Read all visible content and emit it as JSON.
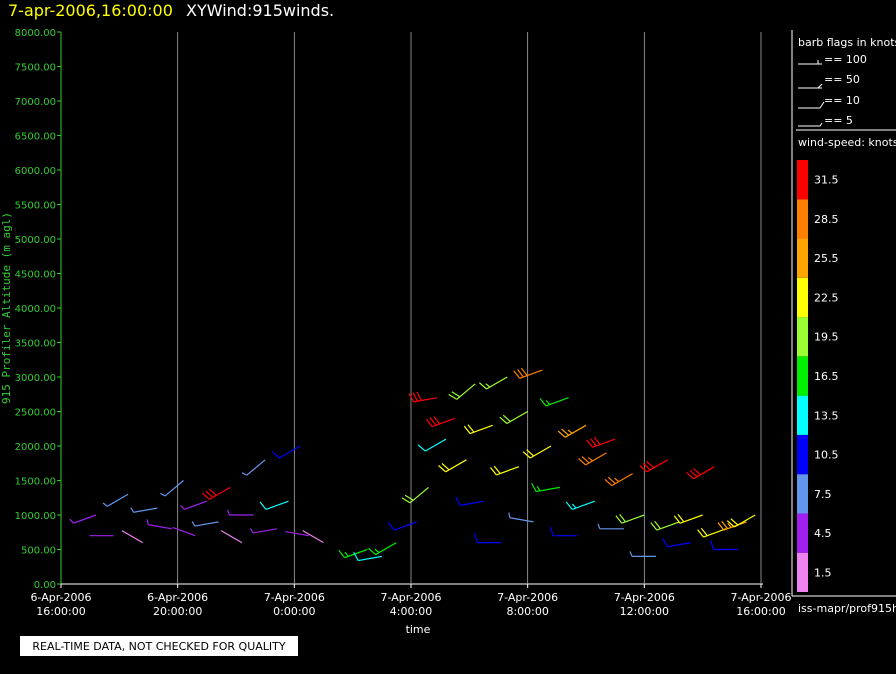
{
  "chart_data": {
    "type": "windbarb",
    "timestamp": "7-apr-2006,16:00:00",
    "title": "XYWind:915winds.",
    "ylabel": "915 Profiler Altitude (m agl)",
    "xlabel": "time",
    "note": "REAL-TIME DATA, NOT CHECKED FOR QUALITY",
    "source": "iss-mapr/prof915h",
    "xlim": [
      0,
      24
    ],
    "xticks": [
      {
        "value": 0,
        "label": "6-Apr-2006 16:00:00"
      },
      {
        "value": 4,
        "label": "6-Apr-2006 20:00:00"
      },
      {
        "value": 8,
        "label": "7-Apr-2006 0:00:00"
      },
      {
        "value": 12,
        "label": "7-Apr-2006 4:00:00"
      },
      {
        "value": 16,
        "label": "7-Apr-2006 8:00:00"
      },
      {
        "value": 20,
        "label": "7-Apr-2006 12:00:00"
      },
      {
        "value": 24,
        "label": "7-Apr-2006 16:00:00"
      }
    ],
    "ylim": [
      0,
      8000
    ],
    "yticks": [
      {
        "value": 0,
        "label": "0.00"
      },
      {
        "value": 500,
        "label": "500.00"
      },
      {
        "value": 1000,
        "label": "1000.00"
      },
      {
        "value": 1500,
        "label": "1500.00"
      },
      {
        "value": 2000,
        "label": "2000.00"
      },
      {
        "value": 2500,
        "label": "2500.00"
      },
      {
        "value": 3000,
        "label": "3000.00"
      },
      {
        "value": 3500,
        "label": "3500.00"
      },
      {
        "value": 4000,
        "label": "4000.00"
      },
      {
        "value": 4500,
        "label": "4500.00"
      },
      {
        "value": 5000,
        "label": "5000.00"
      },
      {
        "value": 5500,
        "label": "5500.00"
      },
      {
        "value": 6000,
        "label": "6000.00"
      },
      {
        "value": 6500,
        "label": "6500.00"
      },
      {
        "value": 7000,
        "label": "7000.00"
      },
      {
        "value": 7500,
        "label": "7500.00"
      },
      {
        "value": 8000,
        "label": "8000.00"
      }
    ],
    "grid": true,
    "barb_legend": {
      "title": "barb flags in knots",
      "entries": [
        "== 100",
        "== 50",
        "== 10",
        "== 5"
      ]
    },
    "colorbar": {
      "title": "wind-speed: knots",
      "labels": [
        1.5,
        4.5,
        7.5,
        10.5,
        13.5,
        16.5,
        19.5,
        22.5,
        25.5,
        28.5,
        31.5
      ],
      "colors": [
        "#ee82ee",
        "#a020f0",
        "#6495ed",
        "#0000ff",
        "#00ffff",
        "#00ee00",
        "#9aff30",
        "#ffff00",
        "#ffa500",
        "#ff7f00",
        "#ff0000"
      ]
    },
    "barbs": {
      "x": [
        1.2,
        1.8,
        2.3,
        2.8,
        3.3,
        3.8,
        4.2,
        4.6,
        5.0,
        5.4,
        5.8,
        6.2,
        6.6,
        7.0,
        7.4,
        7.8,
        8.2,
        8.5,
        9.0,
        10.5,
        11.0,
        11.5,
        12.2,
        12.6,
        12.9,
        13.2,
        13.5,
        13.9,
        14.2,
        14.5,
        14.8,
        15.1,
        15.3,
        15.7,
        16.0,
        16.2,
        16.5,
        16.8,
        17.1,
        17.4,
        17.7,
        18.0,
        18.3,
        18.7,
        19.0,
        19.3,
        19.6,
        20.0,
        20.4,
        20.8,
        21.2,
        21.6,
        22.0,
        22.4,
        22.8,
        23.2,
        23.5,
        23.8
      ],
      "y": [
        1000,
        700,
        1300,
        600,
        1100,
        800,
        1500,
        700,
        1200,
        900,
        1400,
        600,
        1000,
        1800,
        800,
        1200,
        2000,
        700,
        600,
        500,
        400,
        600,
        900,
        1400,
        2700,
        2100,
        2400,
        1800,
        2900,
        1200,
        2300,
        600,
        3000,
        1700,
        2500,
        900,
        3100,
        2000,
        1400,
        2700,
        700,
        2300,
        1200,
        1900,
        2100,
        800,
        1600,
        1000,
        400,
        1800,
        900,
        600,
        1000,
        1700,
        800,
        500,
        900,
        1000
      ],
      "speed": [
        6,
        4,
        8,
        3,
        7,
        5,
        9,
        4,
        6,
        8,
        31,
        3,
        5,
        9,
        6,
        14,
        12,
        4,
        3,
        16,
        14,
        18,
        10,
        20,
        31,
        14,
        31,
        22,
        20,
        12,
        23,
        10,
        19,
        24,
        21,
        8,
        30,
        22,
        17,
        18,
        12,
        26,
        15,
        29,
        32,
        9,
        28,
        21,
        8,
        31,
        20,
        12,
        22,
        32,
        23,
        10,
        25,
        24
      ],
      "direction": [
        250,
        270,
        240,
        300,
        260,
        280,
        230,
        290,
        250,
        260,
        240,
        300,
        270,
        230,
        260,
        250,
        240,
        280,
        300,
        250,
        260,
        240,
        250,
        230,
        260,
        240,
        250,
        240,
        230,
        260,
        250,
        270,
        240,
        250,
        240,
        280,
        250,
        240,
        260,
        250,
        270,
        240,
        250,
        240,
        250,
        270,
        240,
        250,
        270,
        240,
        250,
        260,
        250,
        240,
        250,
        270,
        250,
        240
      ]
    }
  }
}
